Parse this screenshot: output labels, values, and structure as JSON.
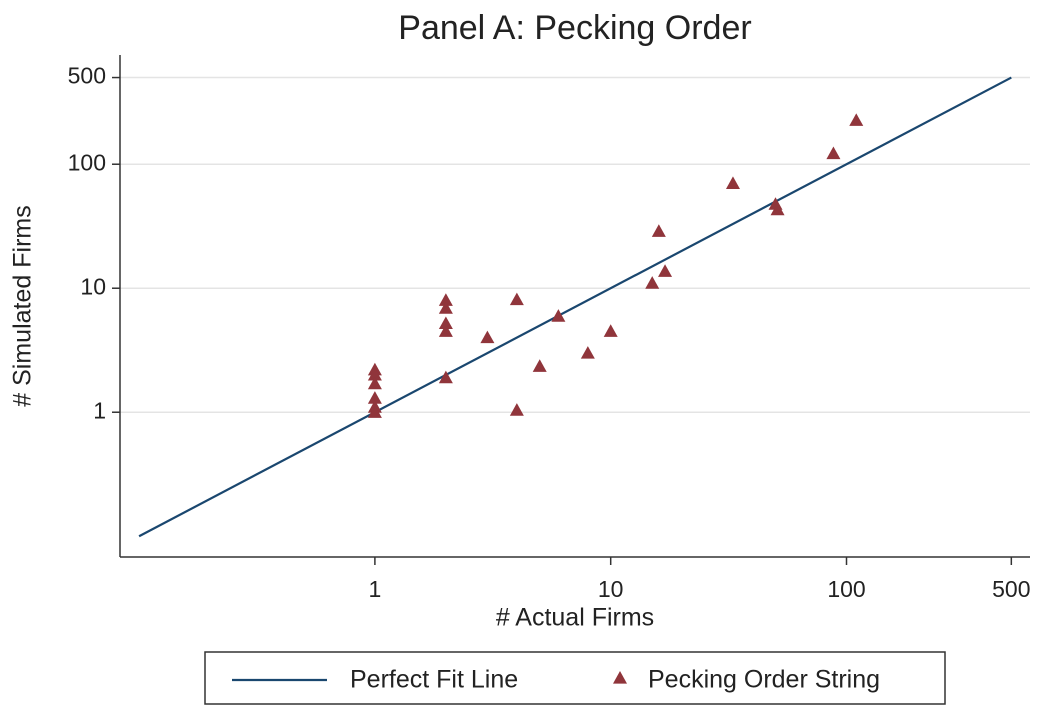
{
  "chart_data": {
    "type": "scatter",
    "title": "Panel A: Pecking Order",
    "x_label": "# Actual Firms",
    "y_label": "# Simulated Firms",
    "x_scale": "log",
    "y_scale": "log",
    "grid": true,
    "legend": "bottom",
    "xlim": [
      0.083,
      600
    ],
    "ylim": [
      0.068,
      760
    ],
    "xticks": [
      1,
      10,
      100,
      500
    ],
    "yticks": [
      1,
      10,
      100,
      500
    ],
    "series": [
      {
        "name": "Perfect Fit Line",
        "color": "#1a476f",
        "kind": "line",
        "x": [
          0.1,
          500
        ],
        "values": [
          0.1,
          500
        ]
      },
      {
        "name": "Pecking Order String",
        "color": "#90353b",
        "kind": "marker",
        "x": [
          1,
          1,
          1,
          1,
          1,
          1,
          2,
          2,
          2,
          2,
          2,
          3,
          4,
          4,
          5,
          6,
          8,
          10,
          15,
          16,
          17,
          33,
          50,
          51,
          88,
          110
        ],
        "values": [
          2.2,
          2.0,
          1.7,
          1.3,
          1.1,
          1.0,
          8.0,
          6.9,
          5.2,
          4.5,
          1.9,
          4.0,
          8.1,
          1.04,
          2.35,
          5.95,
          3.0,
          4.5,
          11,
          28.8,
          13.7,
          70,
          47.6,
          43,
          122,
          226
        ]
      }
    ]
  }
}
